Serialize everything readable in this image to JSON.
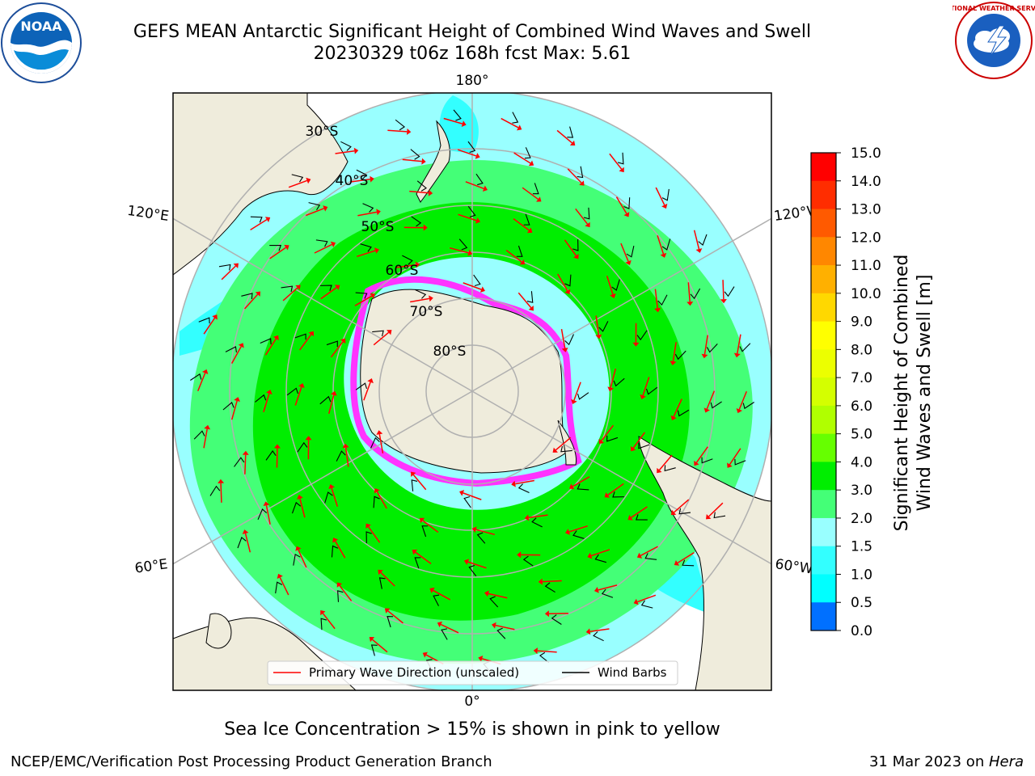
{
  "header": {
    "title": "GEFS MEAN Antarctic Significant Height of Combined Wind Waves and Swell",
    "subtitle": "20230329 t06z 168h fcst   Max: 5.61",
    "noaa_logo_text": "NOAA",
    "nws_logo_text": "NATIONAL WEATHER SERVICE"
  },
  "map": {
    "projection": "south-polar-stereographic",
    "lon_labels": [
      "180°",
      "120°E",
      "120°W",
      "60°E",
      "60°W",
      "0°"
    ],
    "lat_labels": [
      "30°S",
      "40°S",
      "50°S",
      "60°S",
      "70°S",
      "80°S"
    ],
    "colors": {
      "land": "#efecdc",
      "ocean_lt2": "#99ffff",
      "ocean_lt15": "#33ffff",
      "ocean_3": "#44ff77",
      "ocean_4": "#00ee00",
      "ice": "#ff33ff",
      "arrow": "#ff0000",
      "barb": "#000000",
      "grid": "#b0b0b0"
    },
    "legend": {
      "wave_label": "Primary Wave Direction (unscaled)",
      "barb_label": "Wind Barbs"
    }
  },
  "colorbar": {
    "ticks": [
      "15.0",
      "14.0",
      "13.0",
      "12.0",
      "11.0",
      "10.0",
      "9.0",
      "8.0",
      "7.0",
      "6.0",
      "5.0",
      "4.0",
      "3.0",
      "2.0",
      "1.5",
      "1.0",
      "0.5",
      "0.0"
    ],
    "label_line1": "Significant Height of Combined",
    "label_line2": "Wind Waves and Swell [m]",
    "colors": [
      "#ff0000",
      "#ff2d00",
      "#ff5a00",
      "#ff8700",
      "#ffb000",
      "#ffd800",
      "#ffff00",
      "#ecff00",
      "#d4ff00",
      "#b0ff00",
      "#66ff00",
      "#00ee00",
      "#44ff77",
      "#99ffff",
      "#33ffff",
      "#00ffff",
      "#0070ff",
      "#0000ff"
    ]
  },
  "notes": {
    "sea_ice": "Sea Ice Concentration > 15% is shown in pink to yellow"
  },
  "footer": {
    "left": "NCEP/EMC/Verification Post Processing Product Generation Branch",
    "right_date": "31 Mar 2023 on ",
    "right_machine": "Hera"
  }
}
